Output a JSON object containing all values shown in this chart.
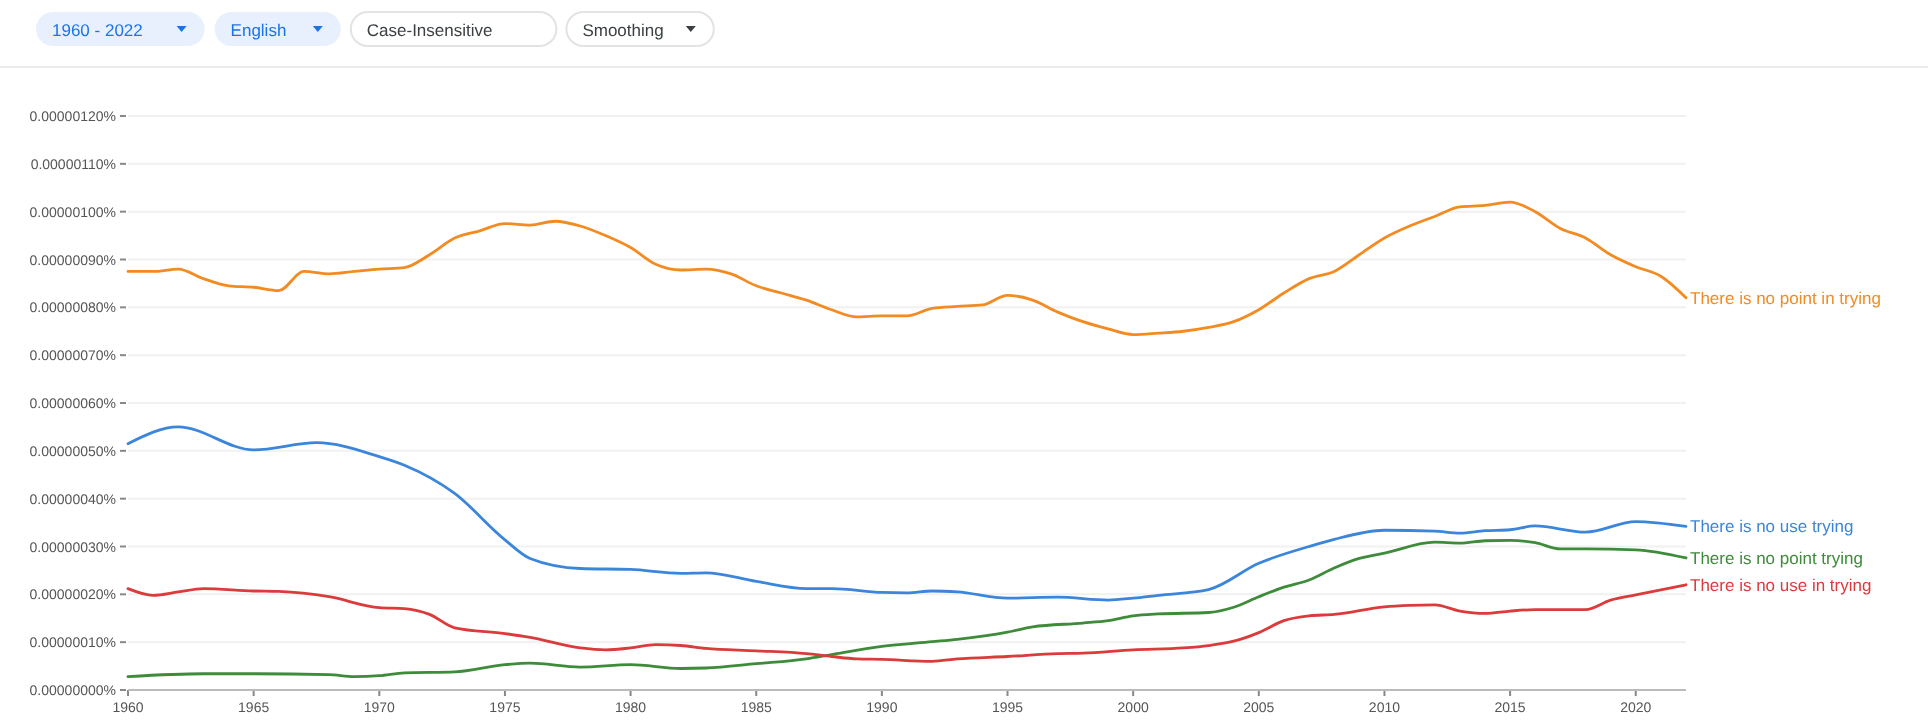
{
  "chart_data": {
    "type": "line",
    "annotations": [
      "1960 - 2022",
      "English",
      "Case-Insensitive",
      "Smoothing"
    ],
    "xlim": [
      1960,
      2022
    ],
    "xticks": [
      1960,
      1965,
      1970,
      1975,
      1980,
      1985,
      1990,
      1995,
      2000,
      2005,
      2010,
      2015,
      2020
    ],
    "ylim": [
      0,
      1.2e-06
    ],
    "yticks": [
      {
        "value": 0,
        "label": "0.00000000%"
      },
      {
        "value": 1e-07,
        "label": "0.00000010%"
      },
      {
        "value": 2e-07,
        "label": "0.00000020%"
      },
      {
        "value": 3e-07,
        "label": "0.00000030%"
      },
      {
        "value": 4e-07,
        "label": "0.00000040%"
      },
      {
        "value": 5e-07,
        "label": "0.00000050%"
      },
      {
        "value": 6e-07,
        "label": "0.00000060%"
      },
      {
        "value": 7e-07,
        "label": "0.00000070%"
      },
      {
        "value": 8e-07,
        "label": "0.00000080%"
      },
      {
        "value": 9e-07,
        "label": "0.00000090%"
      },
      {
        "value": 1e-06,
        "label": "0.00000100%"
      },
      {
        "value": 1.1e-06,
        "label": "0.00000110%"
      },
      {
        "value": 1.2e-06,
        "label": "0.00000120%"
      }
    ],
    "grid": "y",
    "legend": false,
    "series": [
      {
        "name": "There is no point in trying",
        "color": "#f28b21",
        "x": [
          1960,
          1961,
          1962,
          1963,
          1964,
          1965,
          1966,
          1967,
          1968,
          1969,
          1970,
          1971,
          1972,
          1973,
          1974,
          1975,
          1976,
          1977,
          1978,
          1979,
          1980,
          1981,
          1982,
          1983,
          1984,
          1985,
          1986,
          1987,
          1988,
          1989,
          1990,
          1991,
          1992,
          1993,
          1994,
          1995,
          1996,
          1997,
          1998,
          1999,
          2000,
          2001,
          2002,
          2003,
          2004,
          2005,
          2006,
          2007,
          2008,
          2009,
          2010,
          2011,
          2012,
          2013,
          2014,
          2015,
          2016,
          2017,
          2018,
          2019,
          2020,
          2021,
          2022
        ],
        "values": [
          8.75e-07,
          8.75e-07,
          8.8e-07,
          8.6e-07,
          8.45e-07,
          8.42e-07,
          8.35e-07,
          8.75e-07,
          8.7e-07,
          8.75e-07,
          8.8e-07,
          8.83e-07,
          9.1e-07,
          9.45e-07,
          9.6e-07,
          9.75e-07,
          9.72e-07,
          9.8e-07,
          9.7e-07,
          9.5e-07,
          9.25e-07,
          8.9e-07,
          8.78e-07,
          8.8e-07,
          8.7e-07,
          8.45e-07,
          8.3e-07,
          8.15e-07,
          7.95e-07,
          7.8e-07,
          7.82e-07,
          7.82e-07,
          7.98e-07,
          8.02e-07,
          8.05e-07,
          8.25e-07,
          8.15e-07,
          7.9e-07,
          7.7e-07,
          7.55e-07,
          7.43e-07,
          7.46e-07,
          7.5e-07,
          7.58e-07,
          7.7e-07,
          7.95e-07,
          8.3e-07,
          8.6e-07,
          8.75e-07,
          9.1e-07,
          9.45e-07,
          9.7e-07,
          9.9e-07,
          1.01e-06,
          1.013e-06,
          1.02e-06,
          1e-06,
          9.65e-07,
          9.45e-07,
          9.1e-07,
          8.85e-07,
          8.65e-07,
          8.2e-07
        ]
      },
      {
        "name": "There is no use trying",
        "color": "#3b86db",
        "x": [
          1960,
          1962,
          1965,
          1967.5,
          1970,
          1971,
          1973,
          1975,
          1976,
          1978,
          1980,
          1982,
          1983,
          1985,
          1987,
          1988,
          1990,
          1991,
          1992,
          1993,
          1995,
          1997,
          1999,
          2000,
          2001,
          2003,
          2005,
          2007,
          2008,
          2010,
          2012,
          2013,
          2014,
          2015,
          2016,
          2018,
          2020,
          2022
        ],
        "values": [
          5.15e-07,
          5.5e-07,
          5.02e-07,
          5.17e-07,
          4.88e-07,
          4.7e-07,
          4.11e-07,
          3.14e-07,
          2.75e-07,
          2.54e-07,
          2.52e-07,
          2.44e-07,
          2.45e-07,
          2.27e-07,
          2.12e-07,
          2.12e-07,
          2.04e-07,
          2.03e-07,
          2.07e-07,
          2.05e-07,
          1.92e-07,
          1.94e-07,
          1.88e-07,
          1.92e-07,
          1.98e-07,
          2.1e-07,
          2.65e-07,
          3e-07,
          3.15e-07,
          3.34e-07,
          3.32e-07,
          3.28e-07,
          3.33e-07,
          3.35e-07,
          3.43e-07,
          3.3e-07,
          3.52e-07,
          3.42e-07
        ]
      },
      {
        "name": "There is no point trying",
        "color": "#3e8b3a",
        "x": [
          1960,
          1963,
          1965,
          1968,
          1969,
          1970,
          1971,
          1973,
          1975,
          1976,
          1978,
          1980,
          1982,
          1983,
          1985,
          1987,
          1988,
          1990,
          1992,
          1993,
          1995,
          1996,
          1998,
          1999,
          2000,
          2001,
          2003,
          2004,
          2005,
          2006,
          2007,
          2008,
          2009,
          2010,
          2012,
          2013,
          2014,
          2015,
          2016,
          2017,
          2018,
          2020,
          2022
        ],
        "values": [
          2.8e-08,
          3.4e-08,
          3.4e-08,
          3.2e-08,
          2.8e-08,
          3e-08,
          3.6e-08,
          3.8e-08,
          5.3e-08,
          5.6e-08,
          4.8e-08,
          5.3e-08,
          4.5e-08,
          4.6e-08,
          5.5e-08,
          6.5e-08,
          7.4e-08,
          9.1e-08,
          1.01e-07,
          1.06e-07,
          1.21e-07,
          1.32e-07,
          1.4e-07,
          1.45e-07,
          1.55e-07,
          1.59e-07,
          1.62e-07,
          1.73e-07,
          1.95e-07,
          2.15e-07,
          2.3e-07,
          2.55e-07,
          2.75e-07,
          2.86e-07,
          3.09e-07,
          3.07e-07,
          3.12e-07,
          3.13e-07,
          3.08e-07,
          2.95e-07,
          2.95e-07,
          2.93e-07,
          2.76e-07
        ]
      },
      {
        "name": "There is no use in trying",
        "color": "#db3b3b",
        "x": [
          1960,
          1961,
          1962,
          1963,
          1965,
          1966,
          1968,
          1970,
          1971,
          1972,
          1973,
          1975,
          1976,
          1978,
          1979,
          1980,
          1981,
          1982,
          1983,
          1985,
          1987,
          1988,
          1989,
          1990,
          1992,
          1993,
          1995,
          1997,
          1998,
          2000,
          2002,
          2003,
          2004,
          2005,
          2006,
          2007,
          2008,
          2010,
          2011,
          2012,
          2013,
          2014,
          2015,
          2016,
          2018,
          2019,
          2020,
          2022
        ],
        "values": [
          2.12e-07,
          1.98e-07,
          2.05e-07,
          2.12e-07,
          2.07e-07,
          2.06e-07,
          1.95e-07,
          1.72e-07,
          1.7e-07,
          1.58e-07,
          1.3e-07,
          1.18e-07,
          1.1e-07,
          8.8e-08,
          8.4e-08,
          8.8e-08,
          9.5e-08,
          9.3e-08,
          8.7e-08,
          8.2e-08,
          7.6e-08,
          7e-08,
          6.5e-08,
          6.4e-08,
          6e-08,
          6.5e-08,
          7e-08,
          7.6e-08,
          7.7e-08,
          8.4e-08,
          8.8e-08,
          9.3e-08,
          1.02e-07,
          1.2e-07,
          1.45e-07,
          1.55e-07,
          1.58e-07,
          1.74e-07,
          1.77e-07,
          1.78e-07,
          1.65e-07,
          1.6e-07,
          1.65e-07,
          1.68e-07,
          1.68e-07,
          1.88e-07,
          1.99e-07,
          2.2e-07
        ]
      }
    ]
  }
}
